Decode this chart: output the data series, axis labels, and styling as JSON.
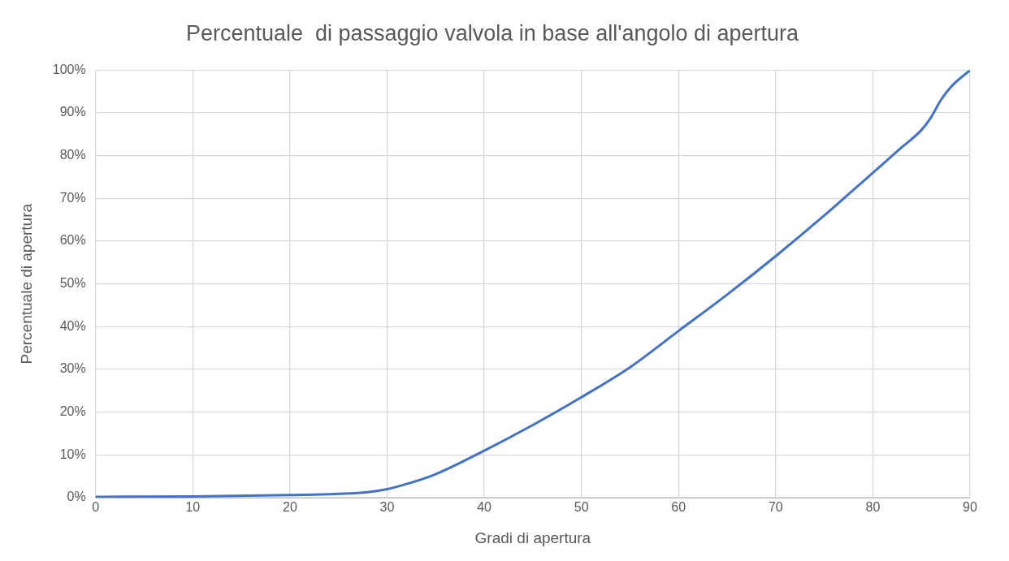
{
  "chart_data": {
    "type": "line",
    "title": "Percentuale  di passaggio valvola in base all'angolo di apertura",
    "xlabel": "Gradi di apertura",
    "ylabel": "Percentuale di apertura",
    "x": [
      0,
      10,
      20,
      25,
      28,
      30,
      32,
      35,
      40,
      45,
      50,
      55,
      60,
      65,
      70,
      75,
      80,
      83,
      85,
      86,
      87,
      88,
      90
    ],
    "series": [
      {
        "color": "#4472c4",
        "values": [
          0.2,
          0.3,
          0.6,
          0.9,
          1.3,
          2,
          3.2,
          5.5,
          11,
          17,
          23.5,
          30.5,
          39,
          47.5,
          56.5,
          66,
          76,
          82,
          86,
          89,
          93,
          96,
          100
        ]
      }
    ],
    "xlim": [
      0,
      90
    ],
    "xticks": [
      0,
      10,
      20,
      30,
      40,
      50,
      60,
      70,
      80,
      90
    ],
    "ylim": [
      0,
      100
    ],
    "yticks": [
      {
        "value": 0,
        "label": "0%"
      },
      {
        "value": 10,
        "label": "10%"
      },
      {
        "value": 20,
        "label": "20%"
      },
      {
        "value": 30,
        "label": "30%"
      },
      {
        "value": 40,
        "label": "40%"
      },
      {
        "value": 50,
        "label": "50%"
      },
      {
        "value": 60,
        "label": "60%"
      },
      {
        "value": 70,
        "label": "70%"
      },
      {
        "value": 80,
        "label": "80%"
      },
      {
        "value": 90,
        "label": "90%"
      },
      {
        "value": 100,
        "label": "100%"
      }
    ],
    "grid": true,
    "legend": false,
    "marker": "none",
    "line_style": "solid"
  }
}
